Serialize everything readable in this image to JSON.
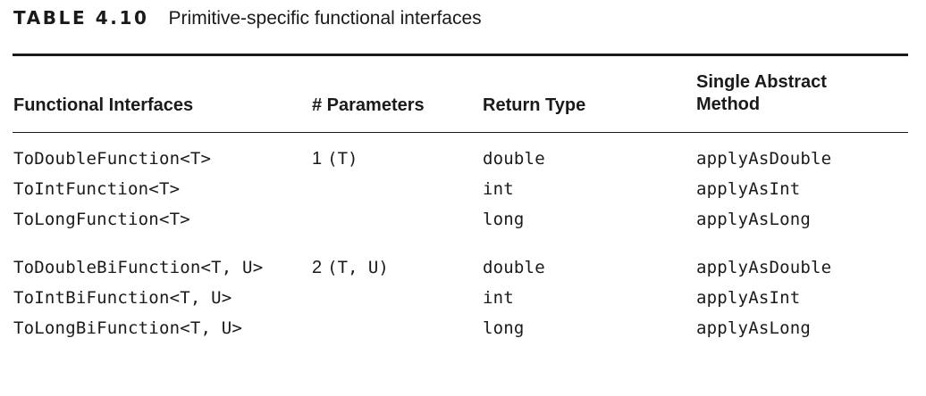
{
  "caption": {
    "label": "TABLE 4.10",
    "title": "Primitive-specific functional interfaces"
  },
  "headers": {
    "col1": "Functional Interfaces",
    "col2": "# Parameters",
    "col3": "Return Type",
    "col4_line1": "Single Abstract",
    "col4_line2": "Method"
  },
  "rows": [
    {
      "interface": "ToDoubleFunction<T>",
      "param_count": "1",
      "params": "(T)",
      "return_type": "double",
      "method": "applyAsDouble"
    },
    {
      "interface": "ToIntFunction<T>",
      "param_count": "",
      "params": "",
      "return_type": "int",
      "method": "applyAsInt"
    },
    {
      "interface": "ToLongFunction<T>",
      "param_count": "",
      "params": "",
      "return_type": "long",
      "method": "applyAsLong"
    },
    {
      "interface": "ToDoubleBiFunction<T, U>",
      "param_count": "2",
      "params": "(T, U)",
      "return_type": "double",
      "method": "applyAsDouble"
    },
    {
      "interface": "ToIntBiFunction<T, U>",
      "param_count": "",
      "params": "",
      "return_type": "int",
      "method": "applyAsInt"
    },
    {
      "interface": "ToLongBiFunction<T, U>",
      "param_count": "",
      "params": "",
      "return_type": "long",
      "method": "applyAsLong"
    }
  ]
}
